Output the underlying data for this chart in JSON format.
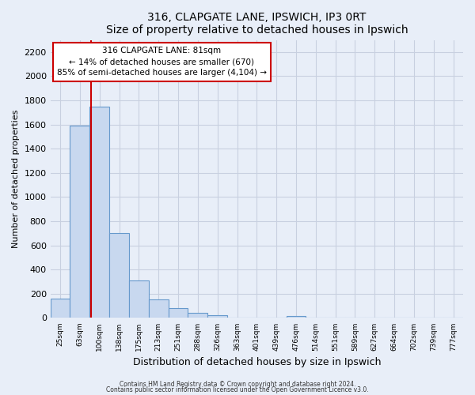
{
  "title": "316, CLAPGATE LANE, IPSWICH, IP3 0RT",
  "subtitle": "Size of property relative to detached houses in Ipswich",
  "xlabel": "Distribution of detached houses by size in Ipswich",
  "ylabel": "Number of detached properties",
  "bar_labels": [
    "25sqm",
    "63sqm",
    "100sqm",
    "138sqm",
    "175sqm",
    "213sqm",
    "251sqm",
    "288sqm",
    "326sqm",
    "363sqm",
    "401sqm",
    "439sqm",
    "476sqm",
    "514sqm",
    "551sqm",
    "589sqm",
    "627sqm",
    "664sqm",
    "702sqm",
    "739sqm",
    "777sqm"
  ],
  "bar_values": [
    160,
    1590,
    1750,
    700,
    310,
    155,
    80,
    45,
    20,
    0,
    0,
    0,
    15,
    0,
    0,
    0,
    0,
    0,
    0,
    0,
    0
  ],
  "bar_color": "#c8d8ef",
  "bar_edgecolor": "#6699cc",
  "bar_width": 1.0,
  "ylim": [
    0,
    2300
  ],
  "yticks": [
    0,
    200,
    400,
    600,
    800,
    1000,
    1200,
    1400,
    1600,
    1800,
    2000,
    2200
  ],
  "vline_x": 1.56,
  "vline_color": "#cc0000",
  "annotation_title": "316 CLAPGATE LANE: 81sqm",
  "annotation_line1": "← 14% of detached houses are smaller (670)",
  "annotation_line2": "85% of semi-detached houses are larger (4,104) →",
  "annotation_box_color": "#cc0000",
  "footnote1": "Contains HM Land Registry data © Crown copyright and database right 2024.",
  "footnote2": "Contains public sector information licensed under the Open Government Licence v3.0.",
  "background_color": "#e8eef8",
  "grid_color": "#c8d0e0"
}
